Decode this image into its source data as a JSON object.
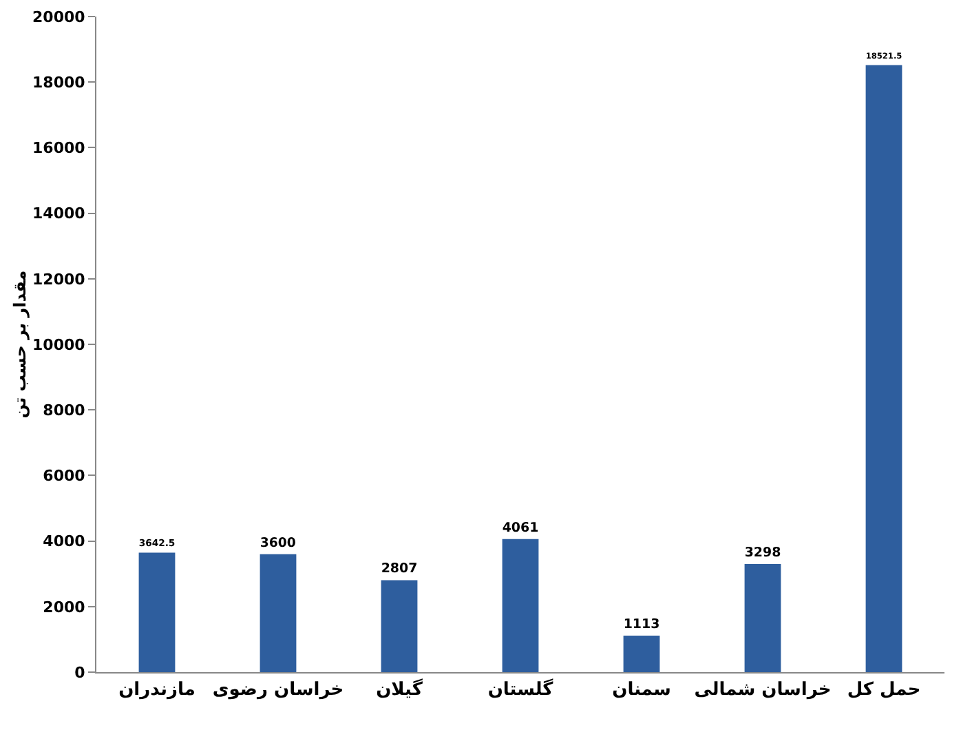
{
  "chart_data": {
    "type": "bar",
    "ylabel": "مقدار بر حسب تن",
    "categories": [
      "مازندران",
      "خراسان رضوی",
      "گیلان",
      "گلستان",
      "سمنان",
      "خراسان شمالی",
      "حمل کل"
    ],
    "values": [
      3642.5,
      3600,
      2807,
      4061,
      1113,
      3298,
      18521.5
    ],
    "color": "#2e5e9e",
    "data_labels": true,
    "ylim": [
      0,
      20000
    ],
    "yticks": [
      0,
      2000,
      4000,
      6000,
      8000,
      10000,
      12000,
      14000,
      16000,
      18000,
      20000
    ],
    "grid": false
  }
}
